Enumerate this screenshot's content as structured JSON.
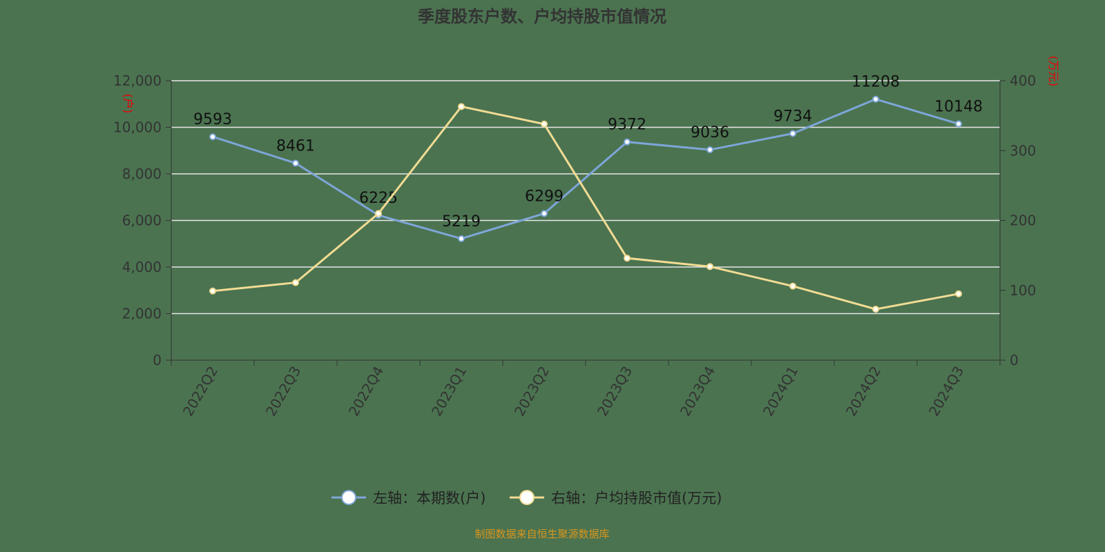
{
  "chart_data": {
    "type": "line",
    "title": "季度股东户数、户均持股市值情况",
    "categories": [
      "2022Q2",
      "2022Q3",
      "2022Q4",
      "2023Q1",
      "2023Q2",
      "2023Q3",
      "2023Q4",
      "2024Q1",
      "2024Q2",
      "2024Q3"
    ],
    "series": [
      {
        "name": "左轴：本期数(户)",
        "axis": "left",
        "color": "#7ea6d8",
        "values": [
          9593,
          8461,
          6225,
          5219,
          6299,
          9372,
          9036,
          9734,
          11208,
          10148
        ],
        "data_labels": true
      },
      {
        "name": "右轴：户均持股市值(万元)",
        "axis": "right",
        "color": "#f2dc94",
        "values": [
          99,
          111,
          210,
          363,
          338,
          146,
          134,
          106,
          73,
          95
        ],
        "data_labels": false
      }
    ],
    "left_axis": {
      "unit": "(户)",
      "ylim": [
        0,
        12000
      ],
      "ticks": [
        "0",
        "2,000",
        "4,000",
        "6,000",
        "8,000",
        "10,000",
        "12,000"
      ]
    },
    "right_axis": {
      "unit": "(万元)",
      "ylim": [
        0,
        400
      ],
      "ticks": [
        "0",
        "100",
        "200",
        "300",
        "400"
      ]
    },
    "grid": true,
    "legend": "bottom",
    "source": "制图数据来自恒生聚源数据库"
  }
}
